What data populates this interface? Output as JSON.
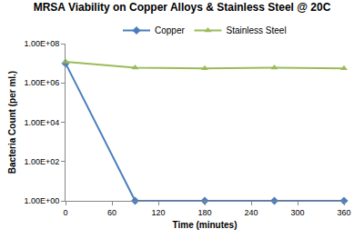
{
  "chart_data": {
    "type": "line",
    "title": "MRSA Viability on Copper Alloys & Stainless Steel @ 20C",
    "x_label": "Time (minutes)",
    "y_label": "Bacteria Count (per ml.)",
    "x": [
      0,
      90,
      180,
      270,
      360
    ],
    "series": [
      {
        "name": "Copper",
        "color": "#4a7ebb",
        "marker": "diamond",
        "line_style": "solid",
        "values": [
          10000000,
          1,
          1,
          1,
          1
        ]
      },
      {
        "name": "Stainless Steel",
        "color": "#9bbb59",
        "marker": "triangle-up",
        "line_style": "solid",
        "values": [
          12000000,
          6000000,
          5500000,
          6000000,
          5500000
        ]
      }
    ],
    "xlim": [
      0,
      360
    ],
    "xticks": [
      0,
      60,
      120,
      180,
      240,
      300,
      360
    ],
    "ylim": [
      1,
      100000000
    ],
    "yticks": [
      {
        "value": 1,
        "label": "1.00E+00"
      },
      {
        "value": 100,
        "label": "1.00E+02"
      },
      {
        "value": 10000,
        "label": "1.00E+04"
      },
      {
        "value": 1000000,
        "label": "1.00E+06"
      },
      {
        "value": 100000000,
        "label": "1.00E+08"
      }
    ],
    "log": "y",
    "grid": false,
    "legend": "top"
  }
}
